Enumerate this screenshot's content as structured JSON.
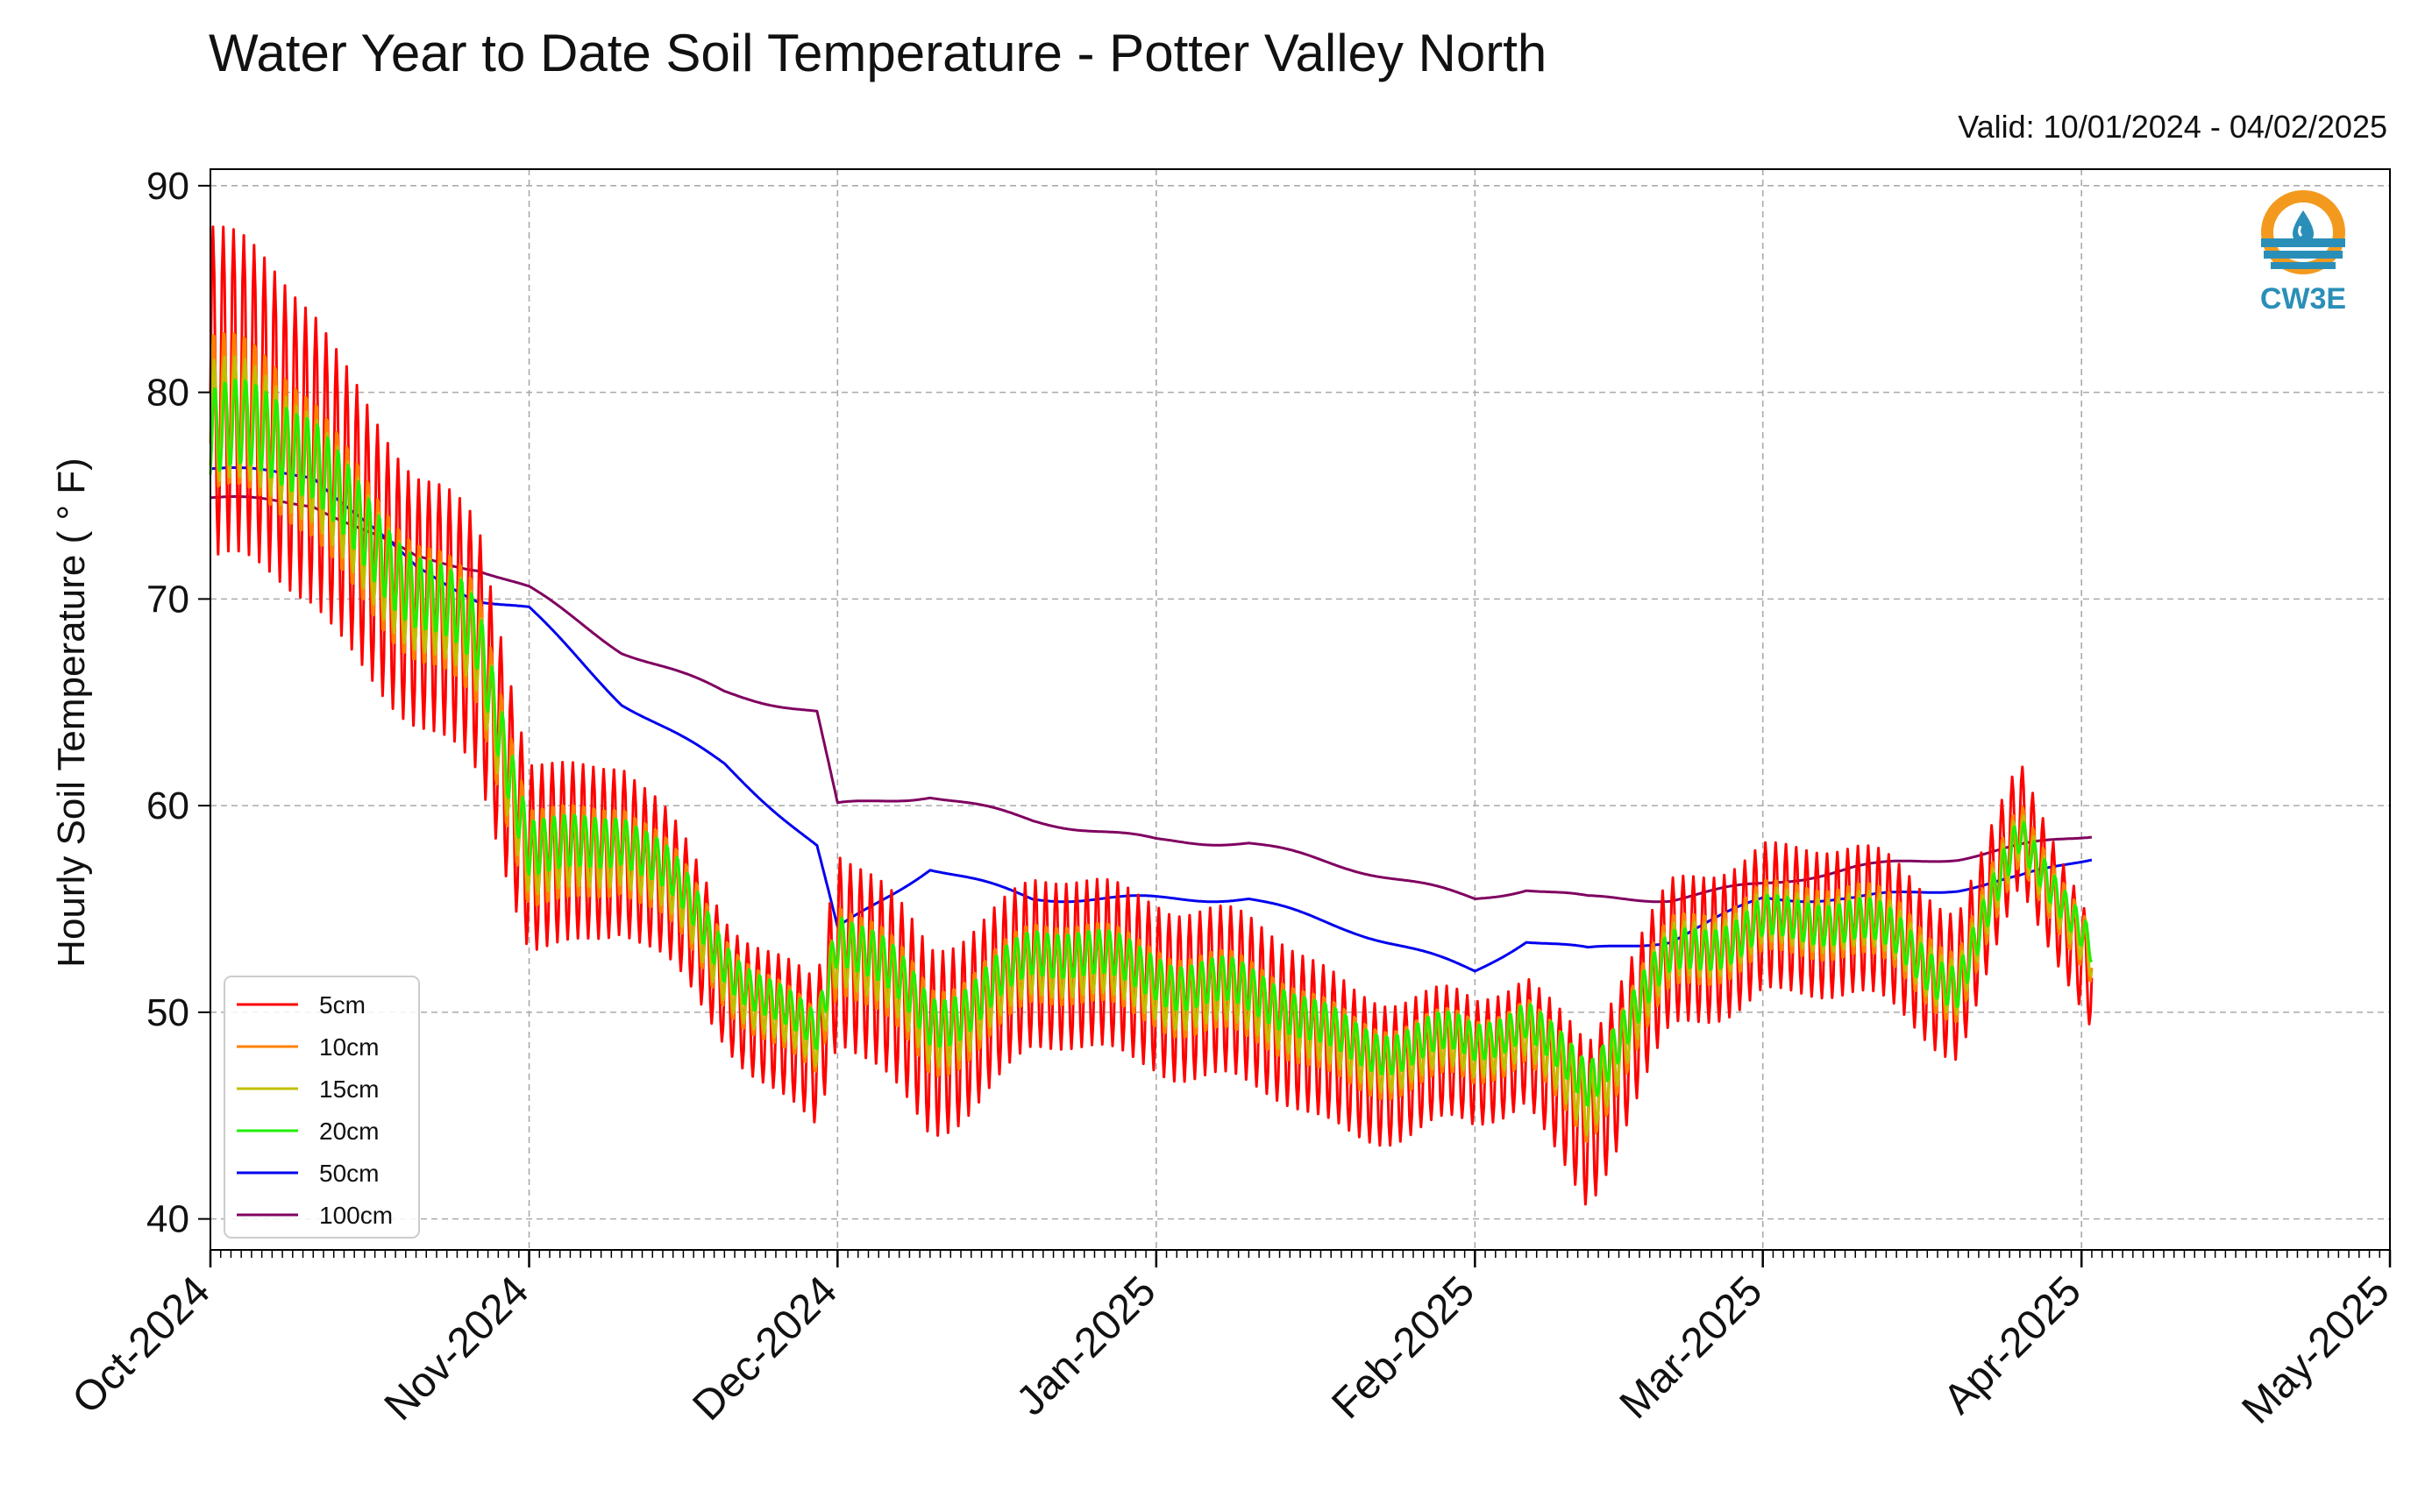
{
  "chart_data": {
    "type": "line",
    "title": "Water Year to Date Soil Temperature - Potter Valley North",
    "subtitle": "Valid: 10/01/2024 - 04/02/2025",
    "ylabel": "Hourly Soil Temperature ( ° F)",
    "xlabel": "",
    "xlim": [
      "2024-10-01",
      "2025-05-01"
    ],
    "ylim": [
      38.5,
      90.8
    ],
    "x_ticks": [
      "Oct-2024",
      "Nov-2024",
      "Dec-2024",
      "Jan-2025",
      "Feb-2025",
      "Mar-2025",
      "Apr-2025",
      "May-2025"
    ],
    "y_ticks": [
      40,
      50,
      60,
      70,
      80,
      90
    ],
    "grid": true,
    "legend_position": "lower-left",
    "x": [
      "2024-10-01",
      "2024-10-11",
      "2024-10-21",
      "2024-10-27",
      "2024-11-01",
      "2024-11-10",
      "2024-11-20",
      "2024-11-29",
      "2024-12-01",
      "2024-12-10",
      "2024-12-20",
      "2025-01-01",
      "2025-01-10",
      "2025-01-20",
      "2025-02-01",
      "2025-02-06",
      "2025-02-12",
      "2025-02-20",
      "2025-03-01",
      "2025-03-10",
      "2025-03-20",
      "2025-03-26",
      "2025-04-02"
    ],
    "series": [
      {
        "name": "5cm",
        "color": "#ff0000",
        "values": [
          80.0,
          77.0,
          70.0,
          67.0,
          58.0,
          58.0,
          52.0,
          48.0,
          53.0,
          49.0,
          52.0,
          52.0,
          50.0,
          48.0,
          47.0,
          49.0,
          45.0,
          52.0,
          55.0,
          54.0,
          52.0,
          59.0,
          51.0
        ],
        "amplitude": [
          8.0,
          7.0,
          6.0,
          6.0,
          4.5,
          4.0,
          3.0,
          3.5,
          4.5,
          4.5,
          4.0,
          4.0,
          4.0,
          3.5,
          3.0,
          3.0,
          4.0,
          3.5,
          3.5,
          3.5,
          3.5,
          3.0,
          2.5
        ]
      },
      {
        "name": "10cm",
        "color": "#ff8000",
        "values": [
          79.0,
          76.5,
          70.0,
          67.0,
          58.0,
          58.0,
          52.5,
          48.5,
          53.0,
          49.5,
          52.0,
          52.0,
          50.0,
          48.5,
          47.5,
          49.5,
          46.0,
          52.0,
          55.0,
          54.0,
          52.0,
          58.5,
          52.0
        ],
        "amplitude": [
          4.0,
          3.5,
          3.0,
          3.0,
          2.5,
          2.2,
          1.8,
          1.6,
          2.2,
          2.2,
          2.0,
          2.0,
          2.0,
          1.8,
          1.6,
          1.6,
          2.0,
          1.8,
          1.8,
          1.8,
          1.8,
          1.6,
          1.4
        ]
      },
      {
        "name": "15cm",
        "color": "#c0c000",
        "values": [
          78.5,
          76.5,
          70.0,
          67.0,
          58.0,
          58.0,
          52.5,
          48.5,
          53.0,
          49.5,
          52.0,
          52.0,
          50.0,
          48.5,
          47.5,
          49.5,
          46.0,
          52.0,
          55.0,
          54.0,
          52.0,
          58.5,
          52.0
        ],
        "amplitude": [
          3.0,
          2.6,
          2.3,
          2.2,
          1.8,
          1.6,
          1.4,
          1.2,
          1.6,
          1.6,
          1.5,
          1.5,
          1.5,
          1.3,
          1.2,
          1.2,
          1.5,
          1.3,
          1.3,
          1.3,
          1.3,
          1.2,
          1.0
        ]
      },
      {
        "name": "20cm",
        "color": "#22ee00",
        "values": [
          78.0,
          77.0,
          70.5,
          67.5,
          58.5,
          58.5,
          53.0,
          49.0,
          53.5,
          50.0,
          52.5,
          52.5,
          50.5,
          49.0,
          48.0,
          50.0,
          47.0,
          52.0,
          55.0,
          54.0,
          52.0,
          58.5,
          52.5
        ],
        "amplitude": [
          2.2,
          2.0,
          1.8,
          1.7,
          1.4,
          1.2,
          1.0,
          0.9,
          1.2,
          1.2,
          1.1,
          1.1,
          1.1,
          1.0,
          0.9,
          0.9,
          1.1,
          1.0,
          1.0,
          1.0,
          1.0,
          0.9,
          0.8
        ]
      },
      {
        "name": "50cm",
        "color": "#0000ee",
        "values": [
          76.3,
          76.0,
          71.5,
          70.0,
          69.5,
          65.0,
          62.0,
          58.0,
          54.0,
          57.0,
          55.5,
          55.5,
          55.5,
          54.0,
          52.0,
          53.5,
          53.0,
          53.5,
          55.5,
          55.5,
          56.0,
          56.5,
          57.5
        ],
        "amplitude": [
          0,
          0,
          0,
          0,
          0,
          0,
          0,
          0,
          0,
          0,
          0,
          0,
          0,
          0,
          0,
          0,
          0,
          0,
          0,
          0,
          0,
          0,
          0
        ]
      },
      {
        "name": "100cm",
        "color": "#800060",
        "values": [
          74.9,
          74.6,
          72.0,
          71.5,
          70.5,
          67.5,
          65.5,
          64.5,
          60.0,
          60.5,
          59.3,
          58.3,
          58.2,
          57.0,
          55.5,
          56.0,
          55.5,
          55.5,
          56.2,
          57.0,
          57.5,
          58.0,
          58.6
        ],
        "amplitude": [
          0,
          0,
          0,
          0,
          0,
          0,
          0,
          0,
          0,
          0,
          0,
          0,
          0,
          0,
          0,
          0,
          0,
          0,
          0,
          0,
          0,
          0,
          0
        ]
      }
    ]
  },
  "logo": {
    "text": "CW3E"
  }
}
